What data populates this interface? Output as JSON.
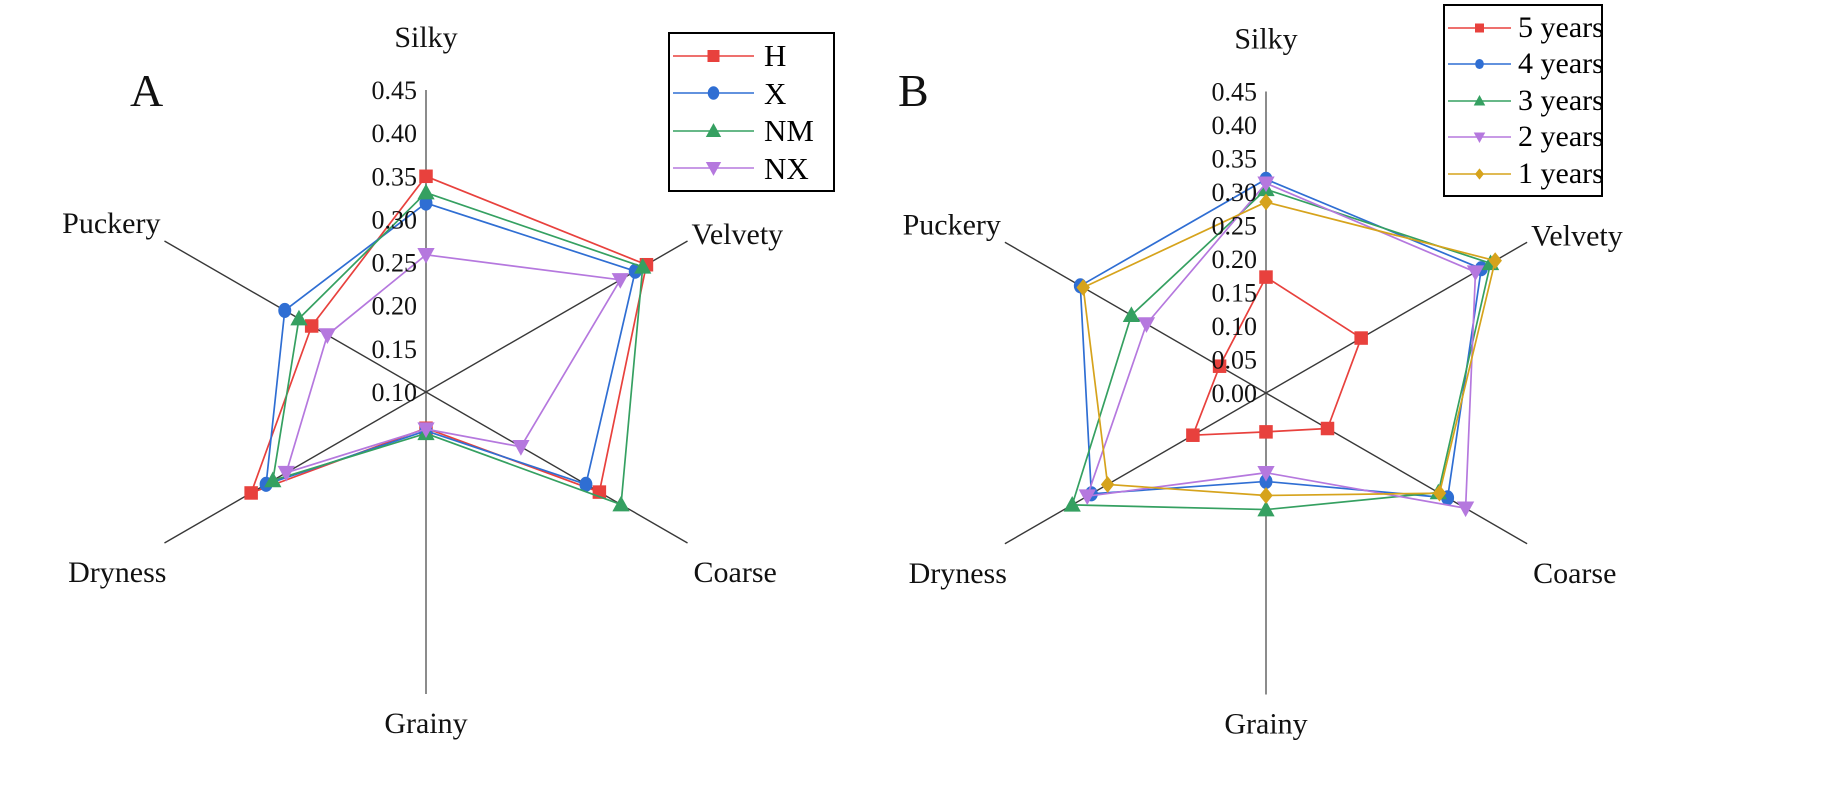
{
  "figure": {
    "background": "#ffffff",
    "axis_color_vertical": "#8c8c8c",
    "axis_color_diagonal": "#383838"
  },
  "chart_data": [
    {
      "type": "radar",
      "panel": "A",
      "categories": [
        "Silky",
        "Velvety",
        "Coarse",
        "Grainy",
        "Dryness",
        "Puckery"
      ],
      "axis_min": 0.1,
      "axis_max": 0.45,
      "tick_labels": [
        "0.45",
        "0.40",
        "0.35",
        "0.30",
        "0.25",
        "0.20",
        "0.15",
        "0.10"
      ],
      "grid": false,
      "legend_position": "top-right",
      "series": [
        {
          "name": "H",
          "marker": "square",
          "color": "#e8413d",
          "values": [
            0.35,
            0.395,
            0.332,
            0.142,
            0.334,
            0.253
          ]
        },
        {
          "name": "X",
          "marker": "circle",
          "color": "#2f6ed3",
          "values": [
            0.319,
            0.38,
            0.314,
            0.145,
            0.314,
            0.289
          ]
        },
        {
          "name": "NM",
          "marker": "triangle-up",
          "color": "#35a061",
          "values": [
            0.331,
            0.39,
            0.361,
            0.148,
            0.305,
            0.27
          ]
        },
        {
          "name": "NX",
          "marker": "triangle-down",
          "color": "#b578de",
          "values": [
            0.259,
            0.36,
            0.227,
            0.143,
            0.287,
            0.232
          ]
        }
      ]
    },
    {
      "type": "radar",
      "panel": "B",
      "categories": [
        "Silky",
        "Velvety",
        "Coarse",
        "Grainy",
        "Dryness",
        "Puckery"
      ],
      "axis_min": 0.0,
      "axis_max": 0.45,
      "tick_labels": [
        "0.45",
        "0.40",
        "0.35",
        "0.30",
        "0.25",
        "0.20",
        "0.15",
        "0.10",
        "0.05",
        "0.00"
      ],
      "grid": false,
      "legend_position": "top-right",
      "series": [
        {
          "name": "5 years",
          "marker": "square",
          "color": "#e8413d",
          "values": [
            0.173,
            0.164,
            0.106,
            0.058,
            0.126,
            0.08
          ]
        },
        {
          "name": "4 years",
          "marker": "circle",
          "color": "#2f6ed3",
          "values": [
            0.319,
            0.371,
            0.313,
            0.132,
            0.301,
            0.32
          ]
        },
        {
          "name": "3 years",
          "marker": "triangle-up",
          "color": "#35a061",
          "values": [
            0.304,
            0.387,
            0.297,
            0.174,
            0.334,
            0.232
          ]
        },
        {
          "name": "2 years",
          "marker": "triangle-down",
          "color": "#b578de",
          "values": [
            0.313,
            0.361,
            0.344,
            0.119,
            0.308,
            0.206
          ]
        },
        {
          "name": "1 years",
          "marker": "diamond",
          "color": "#d6a31c",
          "values": [
            0.285,
            0.395,
            0.299,
            0.153,
            0.273,
            0.315
          ]
        }
      ]
    }
  ]
}
